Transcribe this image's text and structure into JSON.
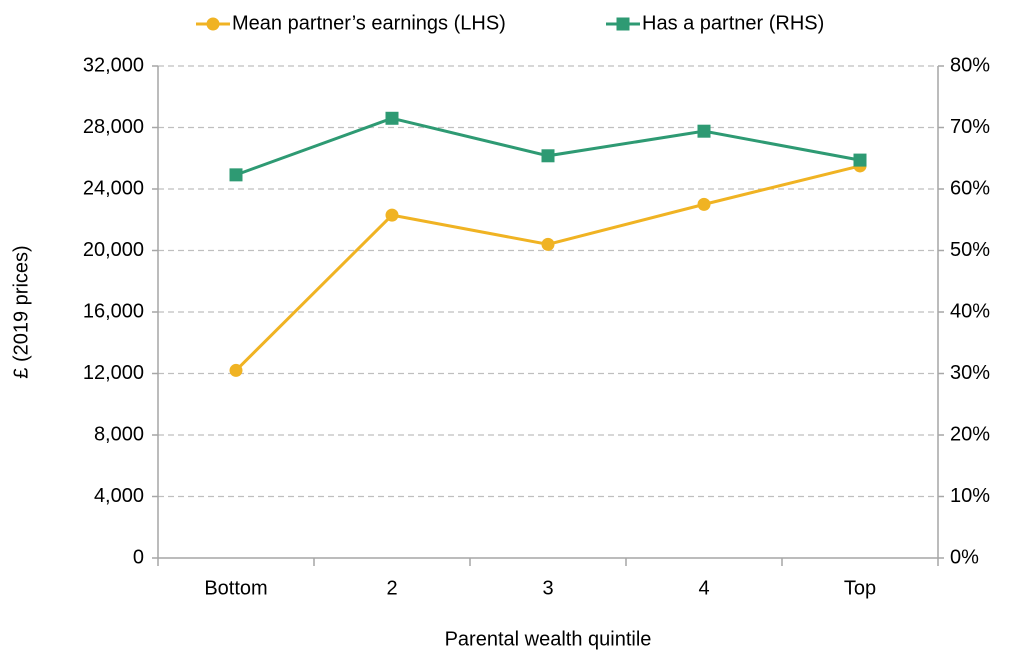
{
  "chart_data": {
    "type": "line",
    "categories": [
      "Bottom",
      "2",
      "3",
      "4",
      "Top"
    ],
    "x_label": "Parental wealth quintile",
    "y_label": "£ (2019 prices)",
    "series": [
      {
        "name": "Mean partner’s earnings (LHS)",
        "color": "#f0b323",
        "marker": "circle",
        "axis": "y",
        "values": [
          12200,
          22300,
          20400,
          23000,
          25500
        ]
      },
      {
        "name": "Has a partner (RHS)",
        "color": "#2e9a73",
        "marker": "square",
        "axis": "y2",
        "values": [
          62.3,
          71.5,
          65.4,
          69.4,
          64.7
        ]
      }
    ],
    "ylim": [
      0,
      32000
    ],
    "yticks": [
      0,
      {
        "value": 4000,
        "label": "4,000"
      },
      {
        "value": 8000,
        "label": "8,000"
      },
      {
        "value": 12000,
        "label": "12,000"
      },
      {
        "value": 16000,
        "label": "16,000"
      },
      {
        "value": 20000,
        "label": "20,000"
      },
      {
        "value": 24000,
        "label": "24,000"
      },
      {
        "value": 28000,
        "label": "28,000"
      },
      {
        "value": 32000,
        "label": "32,000"
      }
    ],
    "y2lim": [
      0,
      80
    ],
    "y2ticks": [
      {
        "value": 0,
        "label": "0%"
      },
      {
        "value": 10,
        "label": "10%"
      },
      {
        "value": 20,
        "label": "20%"
      },
      {
        "value": 30,
        "label": "30%"
      },
      {
        "value": 40,
        "label": "40%"
      },
      {
        "value": 50,
        "label": "50%"
      },
      {
        "value": 60,
        "label": "60%"
      },
      {
        "value": 70,
        "label": "70%"
      },
      {
        "value": 80,
        "label": "80%"
      }
    ],
    "grid": true,
    "legend": "top"
  }
}
